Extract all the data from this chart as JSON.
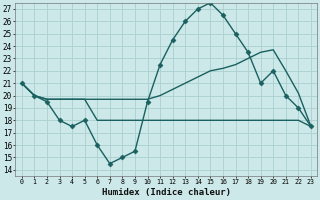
{
  "xlabel": "Humidex (Indice chaleur)",
  "bg_color": "#cce8e8",
  "grid_color": "#aad0d0",
  "line_color": "#1a6060",
  "xlim": [
    -0.5,
    23.5
  ],
  "ylim": [
    13.5,
    27.5
  ],
  "yticks": [
    14,
    15,
    16,
    17,
    18,
    19,
    20,
    21,
    22,
    23,
    24,
    25,
    26,
    27
  ],
  "xticks": [
    0,
    1,
    2,
    3,
    4,
    5,
    6,
    7,
    8,
    9,
    10,
    11,
    12,
    13,
    14,
    15,
    16,
    17,
    18,
    19,
    20,
    21,
    22,
    23
  ],
  "series": [
    {
      "x": [
        0,
        1,
        2,
        3,
        4,
        5,
        6,
        7,
        8,
        9,
        10,
        11,
        12,
        13,
        14,
        15,
        16,
        17,
        18,
        19,
        20,
        21,
        22,
        23
      ],
      "y": [
        21,
        20,
        19.5,
        18,
        17.5,
        18,
        16,
        14.5,
        15,
        15.5,
        19.5,
        22.5,
        24.5,
        26,
        27,
        27.5,
        26.5,
        25,
        23.5,
        21,
        22,
        20,
        19,
        17.5
      ],
      "marker": "D",
      "markersize": 2.5,
      "linewidth": 1.0
    },
    {
      "x": [
        0,
        1,
        2,
        3,
        4,
        5,
        6,
        7,
        8,
        9,
        10,
        11,
        12,
        13,
        14,
        15,
        16,
        17,
        18,
        19,
        20,
        21,
        22,
        23
      ],
      "y": [
        21,
        20,
        19.7,
        19.7,
        19.7,
        19.7,
        19.7,
        19.7,
        19.7,
        19.7,
        19.7,
        20,
        20.5,
        21,
        21.5,
        22,
        22.2,
        22.5,
        23,
        23.5,
        23.7,
        22,
        20.2,
        17.5
      ],
      "marker": null,
      "linewidth": 1.0
    },
    {
      "x": [
        0,
        1,
        2,
        3,
        4,
        5,
        6,
        7,
        8,
        9,
        10,
        11,
        12,
        13,
        14,
        15,
        16,
        17,
        18,
        19,
        20,
        21,
        22,
        23
      ],
      "y": [
        21,
        20,
        19.7,
        19.7,
        19.7,
        19.7,
        18,
        18,
        18,
        18,
        18,
        18,
        18,
        18,
        18,
        18,
        18,
        18,
        18,
        18,
        18,
        18,
        18,
        17.5
      ],
      "marker": null,
      "linewidth": 1.0
    }
  ]
}
